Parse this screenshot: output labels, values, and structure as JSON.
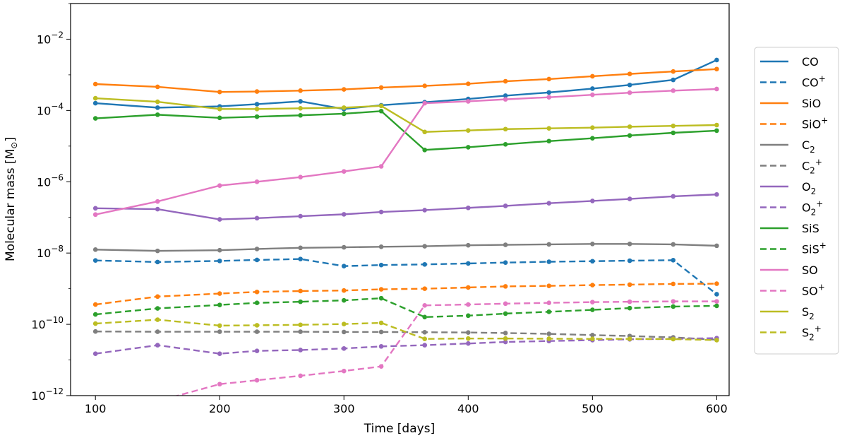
{
  "chart_data": {
    "type": "line",
    "xlabel": "Time [days]",
    "ylabel": "Molecular mass [M",
    "ylabel_symbol": "⊙",
    "ylabel_close": "]",
    "xlim": [
      80,
      610
    ],
    "ylim": [
      1e-12,
      0.1
    ],
    "yscale": "log",
    "xticks": [
      100,
      200,
      300,
      400,
      500,
      600
    ],
    "xtick_labels": [
      "100",
      "200",
      "300",
      "400",
      "500",
      "600"
    ],
    "yticks": [
      1e-12,
      1e-10,
      1e-08,
      1e-06,
      0.0001,
      0.01
    ],
    "ytick_labels": [
      {
        "base": "10",
        "exp": "−12"
      },
      {
        "base": "10",
        "exp": "−10"
      },
      {
        "base": "10",
        "exp": "−8"
      },
      {
        "base": "10",
        "exp": "−6"
      },
      {
        "base": "10",
        "exp": "−4"
      },
      {
        "base": "10",
        "exp": "−2"
      }
    ],
    "legend_position": "right-outside",
    "x": [
      100,
      150,
      200,
      230,
      265,
      300,
      330,
      365,
      400,
      430,
      465,
      500,
      530,
      565,
      600
    ],
    "series": [
      {
        "name": "CO",
        "sub": "",
        "sup": "",
        "color": "#1f77b4",
        "dashed": false,
        "values": [
          0.00016,
          0.00012,
          0.00013,
          0.00015,
          0.00018,
          0.00011,
          0.00014,
          0.00017,
          0.00021,
          0.00026,
          0.00032,
          0.00041,
          0.00052,
          0.00072,
          0.0026
        ]
      },
      {
        "name": "CO",
        "sub": "",
        "sup": "+",
        "color": "#1f77b4",
        "dashed": true,
        "values": [
          6.2e-09,
          5.6e-09,
          6e-09,
          6.4e-09,
          6.8e-09,
          4.3e-09,
          4.6e-09,
          4.8e-09,
          5.1e-09,
          5.4e-09,
          5.7e-09,
          5.9e-09,
          6.1e-09,
          6.3e-09,
          7e-10
        ]
      },
      {
        "name": "SiO",
        "sub": "",
        "sup": "",
        "color": "#ff7f0e",
        "dashed": false,
        "values": [
          0.00055,
          0.00046,
          0.00033,
          0.00034,
          0.00036,
          0.00039,
          0.00044,
          0.00049,
          0.00056,
          0.00066,
          0.00076,
          0.00091,
          0.00106,
          0.00124,
          0.00145
        ]
      },
      {
        "name": "SiO",
        "sub": "",
        "sup": "+",
        "color": "#ff7f0e",
        "dashed": true,
        "values": [
          3.6e-10,
          6e-10,
          7.3e-10,
          8.1e-10,
          8.6e-10,
          8.9e-10,
          9.6e-10,
          1e-09,
          1.08e-09,
          1.16e-09,
          1.2e-09,
          1.26e-09,
          1.3e-09,
          1.36e-09,
          1.38e-09
        ]
      },
      {
        "name": "C",
        "sub": "2",
        "sup": "",
        "color": "#7f7f7f",
        "dashed": false,
        "values": [
          1.25e-08,
          1.15e-08,
          1.2e-08,
          1.3e-08,
          1.4e-08,
          1.45e-08,
          1.5e-08,
          1.55e-08,
          1.65e-08,
          1.7e-08,
          1.75e-08,
          1.8e-08,
          1.8e-08,
          1.75e-08,
          1.6e-08
        ]
      },
      {
        "name": "C",
        "sub": "2",
        "sup": "+",
        "color": "#7f7f7f",
        "dashed": true,
        "values": [
          6.3e-11,
          6.2e-11,
          6.2e-11,
          6.2e-11,
          6.2e-11,
          6.1e-11,
          6.1e-11,
          6e-11,
          5.9e-11,
          5.7e-11,
          5.4e-11,
          5e-11,
          4.7e-11,
          4.3e-11,
          3.7e-11
        ]
      },
      {
        "name": "O",
        "sub": "2",
        "sup": "",
        "color": "#9467bd",
        "dashed": false,
        "values": [
          1.8e-07,
          1.7e-07,
          8.8e-08,
          9.5e-08,
          1.08e-07,
          1.22e-07,
          1.42e-07,
          1.6e-07,
          1.85e-07,
          2.1e-07,
          2.5e-07,
          2.9e-07,
          3.3e-07,
          3.9e-07,
          4.4e-07
        ]
      },
      {
        "name": "O",
        "sub": "2",
        "sup": "+",
        "color": "#9467bd",
        "dashed": true,
        "values": [
          1.5e-11,
          2.6e-11,
          1.5e-11,
          1.8e-11,
          1.9e-11,
          2.1e-11,
          2.4e-11,
          2.6e-11,
          2.9e-11,
          3.2e-11,
          3.4e-11,
          3.6e-11,
          3.8e-11,
          3.9e-11,
          4.1e-11
        ]
      },
      {
        "name": "SiS",
        "sub": "",
        "sup": "",
        "color": "#2ca02c",
        "dashed": false,
        "values": [
          6e-05,
          7.6e-05,
          6.2e-05,
          6.7e-05,
          7.3e-05,
          8.1e-05,
          9.6e-05,
          7.8e-06,
          9.3e-06,
          1.12e-05,
          1.38e-05,
          1.66e-05,
          1.98e-05,
          2.36e-05,
          2.72e-05
        ]
      },
      {
        "name": "SiS",
        "sub": "",
        "sup": "+",
        "color": "#2ca02c",
        "dashed": true,
        "values": [
          1.9e-10,
          2.8e-10,
          3.5e-10,
          4e-10,
          4.3e-10,
          4.7e-10,
          5.4e-10,
          1.6e-10,
          1.75e-10,
          2e-10,
          2.25e-10,
          2.55e-10,
          2.85e-10,
          3.15e-10,
          3.3e-10
        ]
      },
      {
        "name": "SO",
        "sub": "",
        "sup": "",
        "color": "#e377c2",
        "dashed": false,
        "values": [
          1.2e-07,
          2.8e-07,
          7.8e-07,
          1e-06,
          1.35e-06,
          1.95e-06,
          2.7e-06,
          0.00016,
          0.00018,
          0.000205,
          0.000235,
          0.000275,
          0.000315,
          0.00036,
          0.0004
        ]
      },
      {
        "name": "SO",
        "sub": "",
        "sup": "+",
        "color": "#e377c2",
        "dashed": true,
        "values": [
          3e-13,
          7e-13,
          2.1e-12,
          2.7e-12,
          3.6e-12,
          4.9e-12,
          6.6e-12,
          3.4e-10,
          3.6e-10,
          3.8e-10,
          4e-10,
          4.2e-10,
          4.3e-10,
          4.4e-10,
          4.4e-10
        ]
      },
      {
        "name": "S",
        "sub": "2",
        "sup": "",
        "color": "#bcbd22",
        "dashed": false,
        "values": [
          0.00022,
          0.000175,
          0.00011,
          0.00011,
          0.000115,
          0.00012,
          0.000135,
          2.5e-05,
          2.75e-05,
          3e-05,
          3.15e-05,
          3.3e-05,
          3.5e-05,
          3.7e-05,
          3.9e-05
        ]
      },
      {
        "name": "S",
        "sub": "2",
        "sup": "+",
        "color": "#bcbd22",
        "dashed": true,
        "values": [
          1.05e-10,
          1.35e-10,
          9.2e-11,
          9.4e-11,
          9.7e-11,
          1.02e-10,
          1.1e-10,
          3.9e-11,
          4e-11,
          4e-11,
          3.95e-11,
          3.9e-11,
          3.9e-11,
          3.85e-11,
          3.6e-11
        ]
      }
    ]
  }
}
